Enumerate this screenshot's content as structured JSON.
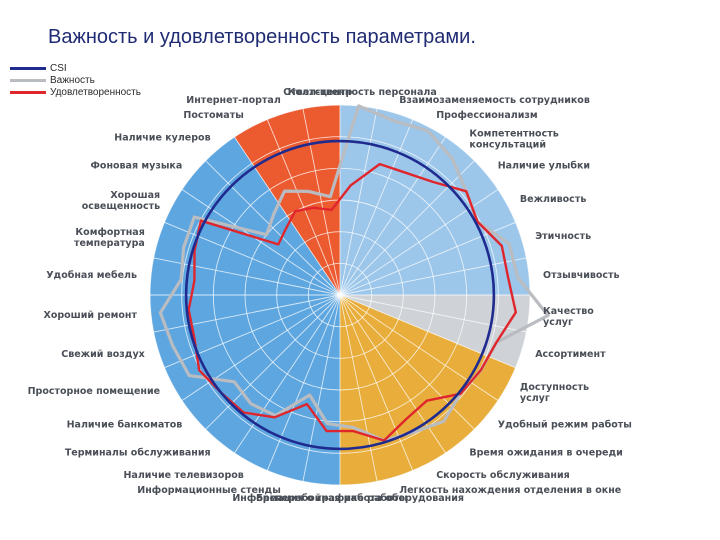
{
  "title": "Важность и удовлетворенность параметрами.",
  "legend": [
    {
      "label": "CSI",
      "color": "#1f2b8f"
    },
    {
      "label": "Важность",
      "color": "#b9bcc0"
    },
    {
      "label": "Удовлетворенность",
      "color": "#e0262d"
    }
  ],
  "colors": {
    "blue_sector": "#5ea6e0",
    "light_blue_sector": "#9cc6ea",
    "gray_sector": "#cfd2d6",
    "yellow_sector": "#e8ad3a",
    "red_sector": "#ec5a30",
    "grid": "#ffffff",
    "label": "#4a4f57"
  },
  "chart_data": {
    "type": "radar",
    "title": "Важность и удовлетворенность параметрами.",
    "categories": [
      "Ответственность персонала",
      "Взаимозаменяемость сотрудников",
      "Профессионализм",
      "Компетентность консультаций",
      "Наличие улыбки",
      "Вежливость",
      "Этичность",
      "Отзывчивость",
      "Качество услуг",
      "Ассортимент",
      "Доступность услуг",
      "Удобный режим работы",
      "Время ожидания в очереди",
      "Скорость обслуживания",
      "Легкость нахождения отделения в окне",
      "Бесперебойная работа оборудования",
      "Информация о графике работы",
      "Информационные стенды",
      "Наличие телевизоров",
      "Терминалы обслуживания",
      "Наличие банкоматов",
      "Просторное помещение",
      "Свежий воздух",
      "Хороший ремонт",
      "Удобная мебель",
      "Комфортная температура",
      "Хорошая освещенность",
      "Фоновая музыка",
      "Наличие кулеров",
      "Постоматы",
      "Интернет-портал",
      "Колл-центр"
    ],
    "series": [
      {
        "name": "CSI",
        "values": [
          0.81,
          0.81,
          0.81,
          0.81,
          0.81,
          0.81,
          0.81,
          0.81,
          0.81,
          0.81,
          0.81,
          0.81,
          0.81,
          0.81,
          0.81,
          0.81,
          0.81,
          0.81,
          0.81,
          0.81,
          0.81,
          0.81,
          0.81,
          0.81,
          0.81,
          0.81,
          0.81,
          0.81,
          0.81,
          0.81,
          0.81,
          0.81
        ]
      },
      {
        "name": "Важность",
        "values": [
          1.0,
          0.96,
          0.98,
          0.93,
          0.86,
          0.82,
          0.93,
          0.94,
          1.1,
          0.86,
          0.84,
          0.82,
          0.86,
          0.82,
          0.8,
          0.7,
          0.68,
          0.55,
          0.72,
          0.74,
          0.72,
          0.9,
          0.92,
          0.95,
          0.84,
          0.86,
          0.87,
          0.5,
          0.55,
          0.62,
          0.57,
          0.52
        ]
      },
      {
        "name": "Удовлетворенность",
        "values": [
          0.58,
          0.72,
          0.73,
          0.77,
          0.86,
          0.82,
          0.89,
          0.89,
          0.93,
          0.86,
          0.84,
          0.82,
          0.72,
          0.74,
          0.8,
          0.72,
          0.72,
          0.6,
          0.73,
          0.8,
          0.81,
          0.84,
          0.8,
          0.8,
          0.77,
          0.8,
          0.83,
          0.42,
          0.45,
          0.5,
          0.48,
          0.45
        ]
      }
    ],
    "sectors": [
      {
        "start": 0,
        "end": 10,
        "color": "#9cc6ea"
      },
      {
        "start": 8,
        "end": 10,
        "color": "#cfd2d6"
      },
      {
        "start": 10,
        "end": 16,
        "color": "#e8ad3a"
      },
      {
        "start": 16,
        "end": 29,
        "color": "#5ea6e0"
      },
      {
        "start": 29,
        "end": 32,
        "color": "#ec5a30"
      }
    ],
    "grid": true,
    "legend_position": "top-left"
  }
}
